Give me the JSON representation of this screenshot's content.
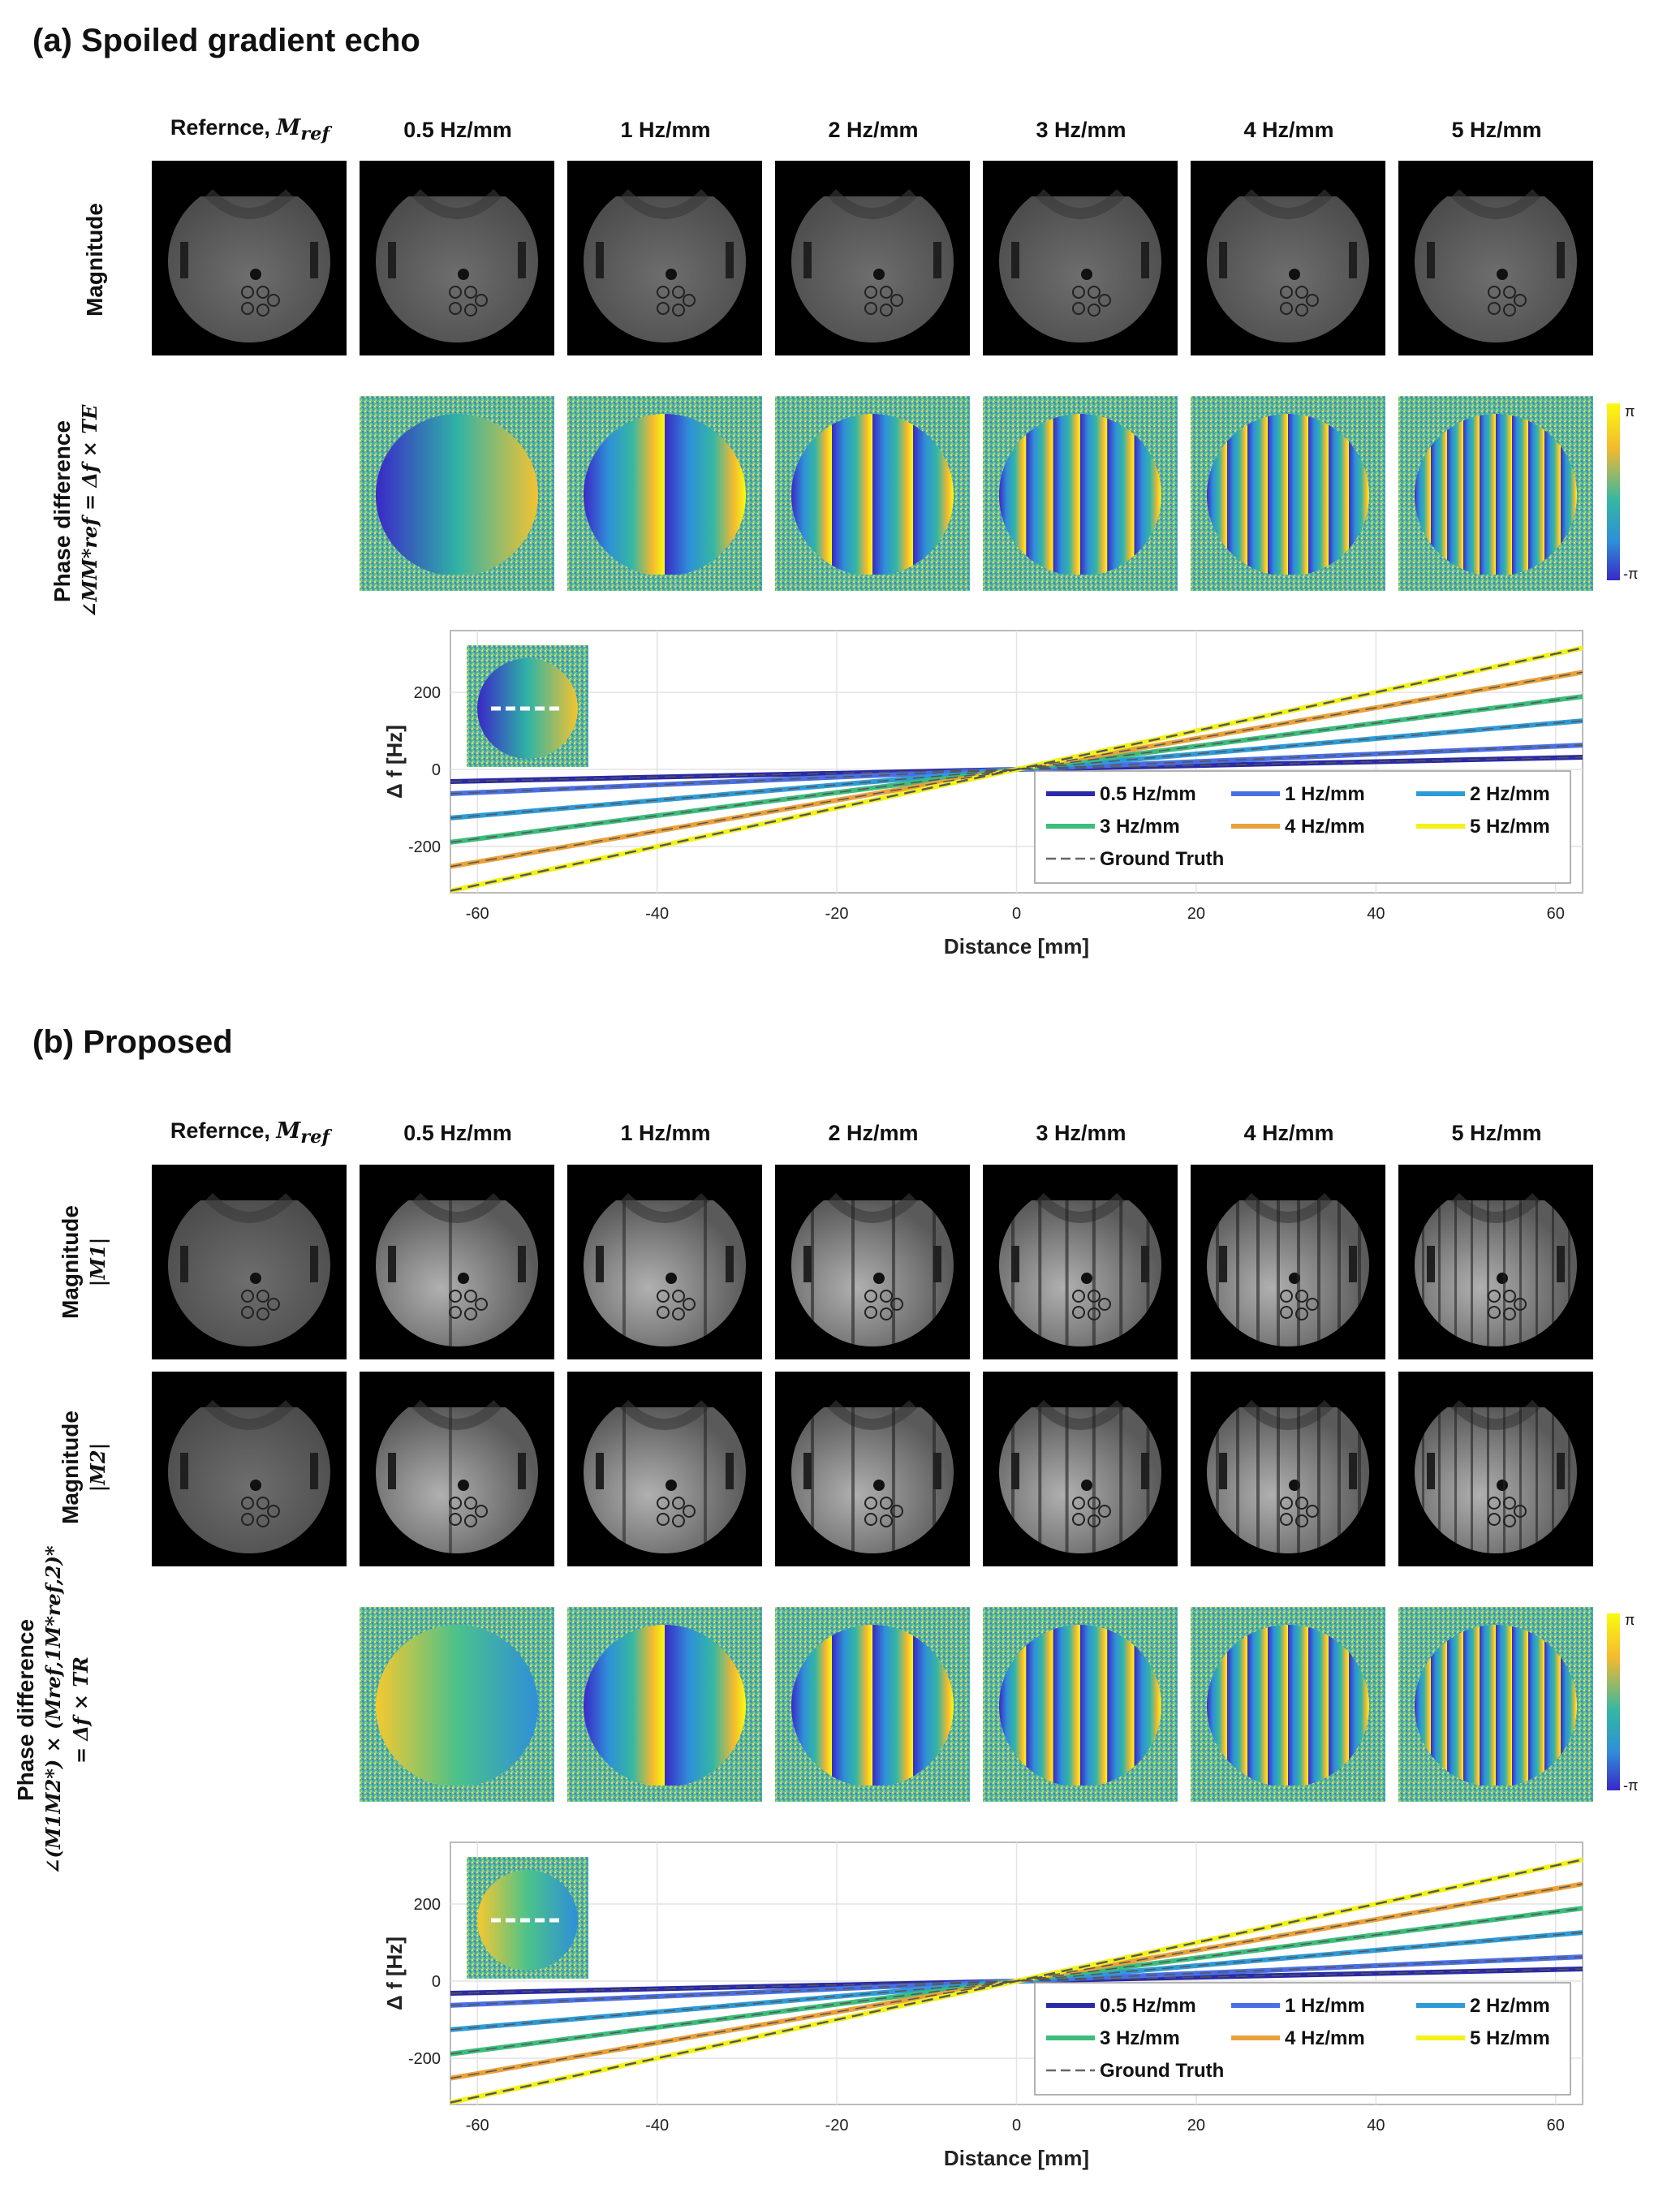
{
  "figure": {
    "columns": [
      "Refernce, ",
      "0.5 Hz/mm",
      "1 Hz/mm",
      "2 Hz/mm",
      "3 Hz/mm",
      "4 Hz/mm",
      "5 Hz/mm"
    ],
    "ref_symbol": "M",
    "ref_sub": "ref",
    "colorbar": {
      "top_label": "π",
      "bottom_label": "-π",
      "colors": [
        "#f9fb0e",
        "#f5b92f",
        "#34b7a3",
        "#2f8fd8",
        "#3a28c8"
      ]
    },
    "sections": [
      {
        "title": "(a) Spoiled gradient echo",
        "rows": [
          {
            "label": "Magnitude",
            "math": ""
          },
          {
            "label": "Phase difference",
            "math": "∠MM*ref = Δf × TE"
          }
        ]
      },
      {
        "title": "(b) Proposed",
        "rows": [
          {
            "label": "Magnitude",
            "math": "|M1|"
          },
          {
            "label": "Magnitude",
            "math": "|M2|"
          },
          {
            "label": "Phase difference",
            "math": "∠(M1M2*) × (Mref,1M*ref,2)*",
            "math2": "= Δf × TR"
          }
        ]
      }
    ]
  },
  "chart_data": [
    {
      "type": "line",
      "title": "",
      "xlabel": "Distance   [mm]",
      "ylabel": "Δ f   [Hz]",
      "xlim": [
        -63,
        63
      ],
      "ylim": [
        -320,
        360
      ],
      "xticks": [
        -60,
        -40,
        -20,
        0,
        20,
        40,
        60
      ],
      "yticks": [
        -200,
        0,
        200
      ],
      "grid": true,
      "legend_position": "bottom-right",
      "x": [
        -63,
        63
      ],
      "series": [
        {
          "name": "0.5 Hz/mm",
          "color": "#2a2aa6",
          "values": [
            -31.5,
            31.5
          ]
        },
        {
          "name": "1 Hz/mm",
          "color": "#4a6fe3",
          "values": [
            -63,
            63
          ]
        },
        {
          "name": "2 Hz/mm",
          "color": "#2f9bd6",
          "values": [
            -126,
            126
          ]
        },
        {
          "name": "3 Hz/mm",
          "color": "#3dbd7c",
          "values": [
            -189,
            189
          ]
        },
        {
          "name": "4 Hz/mm",
          "color": "#e9a23b",
          "values": [
            -252,
            252
          ]
        },
        {
          "name": "5 Hz/mm",
          "color": "#f2f21a",
          "values": [
            -315,
            315
          ]
        },
        {
          "name": "Ground Truth",
          "color": "#666666",
          "dashed": true,
          "values": [
            -315,
            315
          ]
        }
      ]
    },
    {
      "type": "line",
      "title": "",
      "xlabel": "Distance   [mm]",
      "ylabel": "Δ f   [Hz]",
      "xlim": [
        -63,
        63
      ],
      "ylim": [
        -320,
        360
      ],
      "xticks": [
        -60,
        -40,
        -20,
        0,
        20,
        40,
        60
      ],
      "yticks": [
        -200,
        0,
        200
      ],
      "grid": true,
      "legend_position": "bottom-right",
      "x": [
        -63,
        63
      ],
      "series": [
        {
          "name": "0.5 Hz/mm",
          "color": "#2a2aa6",
          "values": [
            -31.5,
            31.5
          ]
        },
        {
          "name": "1 Hz/mm",
          "color": "#4a6fe3",
          "values": [
            -63,
            63
          ]
        },
        {
          "name": "2 Hz/mm",
          "color": "#2f9bd6",
          "values": [
            -126,
            126
          ]
        },
        {
          "name": "3 Hz/mm",
          "color": "#3dbd7c",
          "values": [
            -189,
            189
          ]
        },
        {
          "name": "4 Hz/mm",
          "color": "#e9a23b",
          "values": [
            -252,
            252
          ]
        },
        {
          "name": "5 Hz/mm",
          "color": "#f2f21a",
          "values": [
            -315,
            315
          ]
        },
        {
          "name": "Ground Truth",
          "color": "#666666",
          "dashed": true,
          "values": [
            -315,
            315
          ]
        }
      ]
    }
  ]
}
